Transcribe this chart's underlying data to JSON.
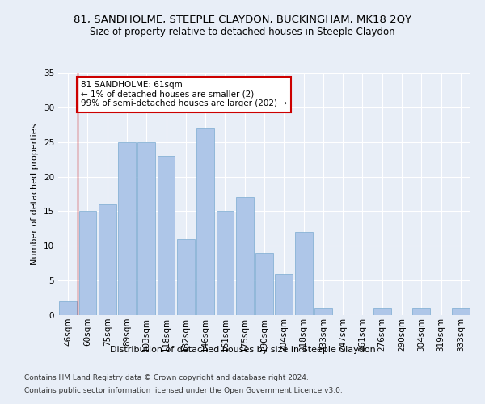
{
  "title": "81, SANDHOLME, STEEPLE CLAYDON, BUCKINGHAM, MK18 2QY",
  "subtitle": "Size of property relative to detached houses in Steeple Claydon",
  "xlabel": "Distribution of detached houses by size in Steeple Claydon",
  "ylabel": "Number of detached properties",
  "categories": [
    "46sqm",
    "60sqm",
    "75sqm",
    "89sqm",
    "103sqm",
    "118sqm",
    "132sqm",
    "146sqm",
    "161sqm",
    "175sqm",
    "190sqm",
    "204sqm",
    "218sqm",
    "233sqm",
    "247sqm",
    "261sqm",
    "276sqm",
    "290sqm",
    "304sqm",
    "319sqm",
    "333sqm"
  ],
  "values": [
    2,
    15,
    16,
    25,
    25,
    23,
    11,
    27,
    15,
    17,
    9,
    6,
    12,
    1,
    0,
    0,
    1,
    0,
    1,
    0,
    1
  ],
  "bar_color": "#aec6e8",
  "bar_edge_color": "#7aaad0",
  "annotation_text": "81 SANDHOLME: 61sqm\n← 1% of detached houses are smaller (2)\n99% of semi-detached houses are larger (202) →",
  "annotation_box_color": "#ffffff",
  "annotation_box_edge": "#cc0000",
  "footer_line1": "Contains HM Land Registry data © Crown copyright and database right 2024.",
  "footer_line2": "Contains public sector information licensed under the Open Government Licence v3.0.",
  "ylim": [
    0,
    35
  ],
  "yticks": [
    0,
    5,
    10,
    15,
    20,
    25,
    30,
    35
  ],
  "bg_color": "#e8eef7",
  "plot_bg_color": "#e8eef7",
  "grid_color": "#ffffff",
  "title_fontsize": 9.5,
  "subtitle_fontsize": 8.5,
  "axis_label_fontsize": 8,
  "tick_fontsize": 7.5,
  "annotation_fontsize": 7.5,
  "footer_fontsize": 6.5,
  "red_line_color": "#cc0000"
}
